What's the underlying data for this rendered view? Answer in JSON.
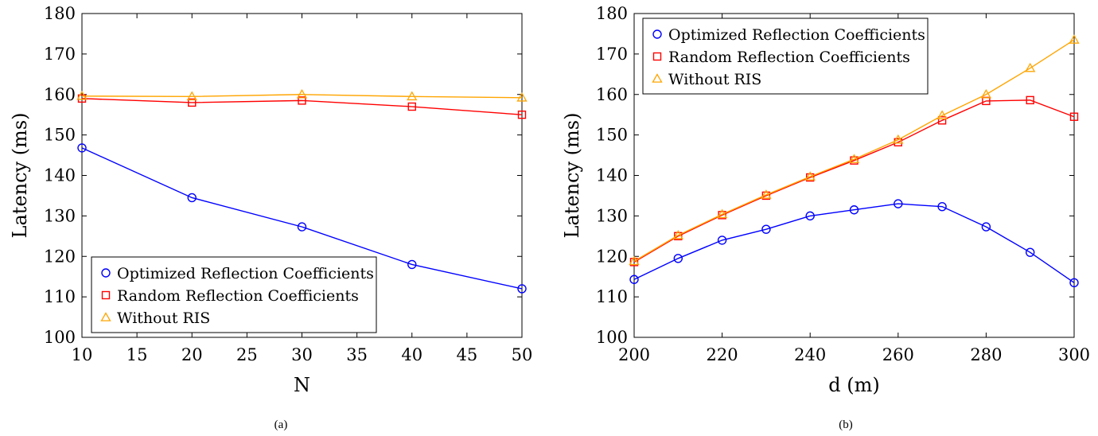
{
  "chart_data": [
    {
      "type": "line",
      "subcaption": "(a)",
      "xlabel": "N",
      "ylabel": "Latency (ms)",
      "xlim": [
        10,
        50
      ],
      "ylim": [
        100,
        180
      ],
      "xticks": [
        10,
        15,
        20,
        25,
        30,
        35,
        40,
        45,
        50
      ],
      "yticks": [
        100,
        110,
        120,
        130,
        140,
        150,
        160,
        170,
        180
      ],
      "grid": false,
      "legend_position": "bottom-left",
      "x": [
        10,
        20,
        30,
        40,
        50
      ],
      "series": [
        {
          "name": "Optimized Reflection Coefficients",
          "marker": "circle",
          "color": "#0000ff",
          "values": [
            146.8,
            134.5,
            127.3,
            118.0,
            112.0
          ]
        },
        {
          "name": "Random Reflection Coefficients",
          "marker": "square",
          "color": "#ff0000",
          "values": [
            159.0,
            158.0,
            158.5,
            157.0,
            155.0
          ]
        },
        {
          "name": "Without RIS",
          "marker": "triangle",
          "color": "#ffa500",
          "values": [
            159.6,
            159.5,
            160.0,
            159.5,
            159.2
          ]
        }
      ]
    },
    {
      "type": "line",
      "subcaption": "(b)",
      "xlabel": "d (m)",
      "ylabel": "Latency (ms)",
      "xlim": [
        200,
        300
      ],
      "ylim": [
        100,
        180
      ],
      "xticks": [
        200,
        220,
        240,
        260,
        280,
        300
      ],
      "yticks": [
        100,
        110,
        120,
        130,
        140,
        150,
        160,
        170,
        180
      ],
      "grid": false,
      "legend_position": "top-left",
      "x": [
        200,
        210,
        220,
        230,
        240,
        250,
        260,
        270,
        280,
        290,
        300
      ],
      "series": [
        {
          "name": "Optimized Reflection Coefficients",
          "marker": "circle",
          "color": "#0000ff",
          "values": [
            114.3,
            119.5,
            124.0,
            126.7,
            130.0,
            131.5,
            133.0,
            132.3,
            127.3,
            121.0,
            113.5
          ]
        },
        {
          "name": "Random Reflection Coefficients",
          "marker": "square",
          "color": "#ff0000",
          "values": [
            118.6,
            125.0,
            130.2,
            135.0,
            139.5,
            143.7,
            148.2,
            153.6,
            158.4,
            158.6,
            154.5
          ]
        },
        {
          "name": "Without RIS",
          "marker": "triangle",
          "color": "#ffa500",
          "values": [
            118.8,
            125.2,
            130.4,
            135.2,
            139.7,
            144.0,
            148.8,
            154.8,
            160.0,
            166.5,
            173.5
          ]
        }
      ]
    }
  ]
}
